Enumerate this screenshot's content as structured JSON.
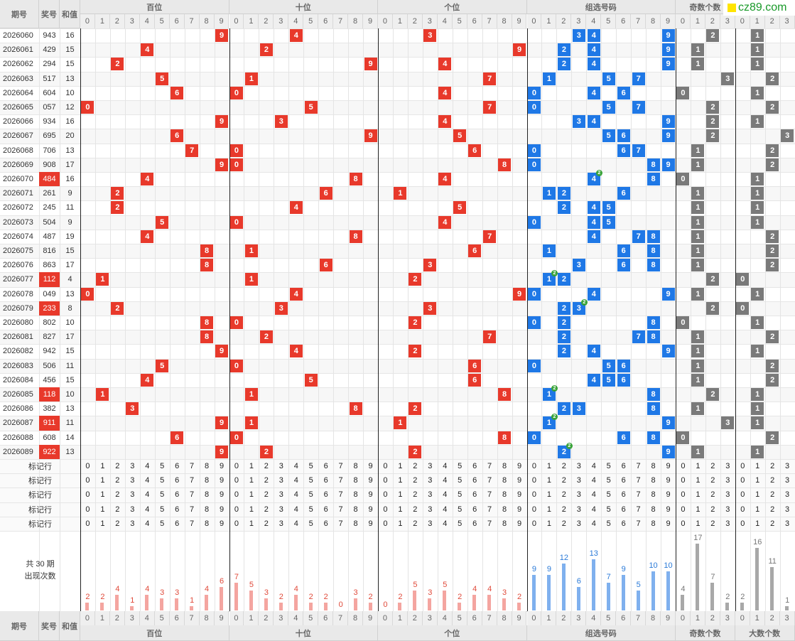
{
  "header": {
    "period_label": "期号",
    "number_label": "奖号",
    "sum_label": "和值",
    "groups": [
      "百位",
      "十位",
      "个位",
      "组选号码",
      "奇数个数",
      "大数个数"
    ],
    "logo_text": "cz89.com"
  },
  "rows": [
    {
      "period": "2026060",
      "number": "943",
      "sum": "16",
      "hl": false,
      "hundreds": 9,
      "tens": 4,
      "units": 3,
      "group": [
        3,
        4,
        9
      ],
      "dup": null,
      "odd": 2,
      "big": 1
    },
    {
      "period": "2026061",
      "number": "429",
      "sum": "15",
      "hl": false,
      "hundreds": 4,
      "tens": 2,
      "units": 9,
      "group": [
        2,
        4,
        9
      ],
      "dup": null,
      "odd": 1,
      "big": 1
    },
    {
      "period": "2026062",
      "number": "294",
      "sum": "15",
      "hl": false,
      "hundreds": 2,
      "tens": 9,
      "units": 4,
      "group": [
        2,
        4,
        9
      ],
      "dup": null,
      "odd": 1,
      "big": 1
    },
    {
      "period": "2026063",
      "number": "517",
      "sum": "13",
      "hl": false,
      "hundreds": 5,
      "tens": 1,
      "units": 7,
      "group": [
        1,
        5,
        7
      ],
      "dup": null,
      "odd": 3,
      "big": 2
    },
    {
      "period": "2026064",
      "number": "604",
      "sum": "10",
      "hl": false,
      "hundreds": 6,
      "tens": 0,
      "units": 4,
      "group": [
        0,
        4,
        6
      ],
      "dup": null,
      "odd": 0,
      "big": 1
    },
    {
      "period": "2026065",
      "number": "057",
      "sum": "12",
      "hl": false,
      "hundreds": 0,
      "tens": 5,
      "units": 7,
      "group": [
        0,
        5,
        7
      ],
      "dup": null,
      "odd": 2,
      "big": 2
    },
    {
      "period": "2026066",
      "number": "934",
      "sum": "16",
      "hl": false,
      "hundreds": 9,
      "tens": 3,
      "units": 4,
      "group": [
        3,
        4,
        9
      ],
      "dup": null,
      "odd": 2,
      "big": 1
    },
    {
      "period": "2026067",
      "number": "695",
      "sum": "20",
      "hl": false,
      "hundreds": 6,
      "tens": 9,
      "units": 5,
      "group": [
        5,
        6,
        9
      ],
      "dup": null,
      "odd": 2,
      "big": 3
    },
    {
      "period": "2026068",
      "number": "706",
      "sum": "13",
      "hl": false,
      "hundreds": 7,
      "tens": 0,
      "units": 6,
      "group": [
        0,
        6,
        7
      ],
      "dup": null,
      "odd": 1,
      "big": 2
    },
    {
      "period": "2026069",
      "number": "908",
      "sum": "17",
      "hl": false,
      "hundreds": 9,
      "tens": 0,
      "units": 8,
      "group": [
        0,
        8,
        9
      ],
      "dup": null,
      "odd": 1,
      "big": 2
    },
    {
      "period": "2026070",
      "number": "484",
      "sum": "16",
      "hl": true,
      "hundreds": 4,
      "tens": 8,
      "units": 4,
      "group": [
        4,
        8
      ],
      "dup": 4,
      "odd": 0,
      "big": 1
    },
    {
      "period": "2026071",
      "number": "261",
      "sum": "9",
      "hl": false,
      "hundreds": 2,
      "tens": 6,
      "units": 1,
      "group": [
        1,
        2,
        6
      ],
      "dup": null,
      "odd": 1,
      "big": 1
    },
    {
      "period": "2026072",
      "number": "245",
      "sum": "11",
      "hl": false,
      "hundreds": 2,
      "tens": 4,
      "units": 5,
      "group": [
        2,
        4,
        5
      ],
      "dup": null,
      "odd": 1,
      "big": 1
    },
    {
      "period": "2026073",
      "number": "504",
      "sum": "9",
      "hl": false,
      "hundreds": 5,
      "tens": 0,
      "units": 4,
      "group": [
        0,
        4,
        5
      ],
      "dup": null,
      "odd": 1,
      "big": 1
    },
    {
      "period": "2026074",
      "number": "487",
      "sum": "19",
      "hl": false,
      "hundreds": 4,
      "tens": 8,
      "units": 7,
      "group": [
        4,
        7,
        8
      ],
      "dup": null,
      "odd": 1,
      "big": 2
    },
    {
      "period": "2026075",
      "number": "816",
      "sum": "15",
      "hl": false,
      "hundreds": 8,
      "tens": 1,
      "units": 6,
      "group": [
        1,
        6,
        8
      ],
      "dup": null,
      "odd": 1,
      "big": 2
    },
    {
      "period": "2026076",
      "number": "863",
      "sum": "17",
      "hl": false,
      "hundreds": 8,
      "tens": 6,
      "units": 3,
      "group": [
        3,
        6,
        8
      ],
      "dup": null,
      "odd": 1,
      "big": 2
    },
    {
      "period": "2026077",
      "number": "112",
      "sum": "4",
      "hl": true,
      "hundreds": 1,
      "tens": 1,
      "units": 2,
      "group": [
        1,
        2
      ],
      "dup": 1,
      "odd": 2,
      "big": 0
    },
    {
      "period": "2026078",
      "number": "049",
      "sum": "13",
      "hl": false,
      "hundreds": 0,
      "tens": 4,
      "units": 9,
      "group": [
        0,
        4,
        9
      ],
      "dup": null,
      "odd": 1,
      "big": 1
    },
    {
      "period": "2026079",
      "number": "233",
      "sum": "8",
      "hl": true,
      "hundreds": 2,
      "tens": 3,
      "units": 3,
      "group": [
        2,
        3
      ],
      "dup": 3,
      "odd": 2,
      "big": 0
    },
    {
      "period": "2026080",
      "number": "802",
      "sum": "10",
      "hl": false,
      "hundreds": 8,
      "tens": 0,
      "units": 2,
      "group": [
        0,
        2,
        8
      ],
      "dup": null,
      "odd": 0,
      "big": 1
    },
    {
      "period": "2026081",
      "number": "827",
      "sum": "17",
      "hl": false,
      "hundreds": 8,
      "tens": 2,
      "units": 7,
      "group": [
        2,
        7,
        8
      ],
      "dup": null,
      "odd": 1,
      "big": 2
    },
    {
      "period": "2026082",
      "number": "942",
      "sum": "15",
      "hl": false,
      "hundreds": 9,
      "tens": 4,
      "units": 2,
      "group": [
        2,
        4,
        9
      ],
      "dup": null,
      "odd": 1,
      "big": 1
    },
    {
      "period": "2026083",
      "number": "506",
      "sum": "11",
      "hl": false,
      "hundreds": 5,
      "tens": 0,
      "units": 6,
      "group": [
        0,
        5,
        6
      ],
      "dup": null,
      "odd": 1,
      "big": 2
    },
    {
      "period": "2026084",
      "number": "456",
      "sum": "15",
      "hl": false,
      "hundreds": 4,
      "tens": 5,
      "units": 6,
      "group": [
        4,
        5,
        6
      ],
      "dup": null,
      "odd": 1,
      "big": 2
    },
    {
      "period": "2026085",
      "number": "118",
      "sum": "10",
      "hl": true,
      "hundreds": 1,
      "tens": 1,
      "units": 8,
      "group": [
        1,
        8
      ],
      "dup": 1,
      "odd": 2,
      "big": 1
    },
    {
      "period": "2026086",
      "number": "382",
      "sum": "13",
      "hl": false,
      "hundreds": 3,
      "tens": 8,
      "units": 2,
      "group": [
        2,
        3,
        8
      ],
      "dup": null,
      "odd": 1,
      "big": 1
    },
    {
      "period": "2026087",
      "number": "911",
      "sum": "11",
      "hl": true,
      "hundreds": 9,
      "tens": 1,
      "units": 1,
      "group": [
        1,
        9
      ],
      "dup": 1,
      "odd": 3,
      "big": 1
    },
    {
      "period": "2026088",
      "number": "608",
      "sum": "14",
      "hl": false,
      "hundreds": 6,
      "tens": 0,
      "units": 8,
      "group": [
        0,
        6,
        8
      ],
      "dup": null,
      "odd": 0,
      "big": 2
    },
    {
      "period": "2026089",
      "number": "922",
      "sum": "13",
      "hl": true,
      "hundreds": 9,
      "tens": 2,
      "units": 2,
      "group": [
        2,
        9
      ],
      "dup": 2,
      "odd": 1,
      "big": 1
    }
  ],
  "dup_label": "2",
  "marker_rows": {
    "label": "标记行",
    "count": 5
  },
  "digits": [
    "0",
    "1",
    "2",
    "3",
    "4",
    "5",
    "6",
    "7",
    "8",
    "9"
  ],
  "digits4": [
    "0",
    "1",
    "2",
    "3"
  ],
  "stats_label_1": "共 30 期",
  "stats_label_2": "出现次数",
  "chart_data": {
    "type": "bar",
    "title": "共 30 期 出现次数",
    "groups": [
      {
        "name": "百位",
        "categories": [
          "0",
          "1",
          "2",
          "3",
          "4",
          "5",
          "6",
          "7",
          "8",
          "9"
        ],
        "values": [
          2,
          2,
          4,
          1,
          4,
          3,
          3,
          1,
          4,
          6
        ]
      },
      {
        "name": "十位",
        "categories": [
          "0",
          "1",
          "2",
          "3",
          "4",
          "5",
          "6",
          "7",
          "8",
          "9"
        ],
        "values": [
          7,
          5,
          3,
          2,
          4,
          2,
          2,
          0,
          3,
          2
        ]
      },
      {
        "name": "个位",
        "categories": [
          "0",
          "1",
          "2",
          "3",
          "4",
          "5",
          "6",
          "7",
          "8",
          "9"
        ],
        "values": [
          0,
          2,
          5,
          3,
          5,
          2,
          4,
          4,
          3,
          2
        ]
      },
      {
        "name": "组选号码",
        "categories": [
          "0",
          "1",
          "2",
          "3",
          "4",
          "5",
          "6",
          "7",
          "8",
          "9"
        ],
        "values": [
          9,
          9,
          12,
          6,
          13,
          7,
          9,
          5,
          10,
          10
        ]
      },
      {
        "name": "奇数个数",
        "categories": [
          "0",
          "1",
          "2",
          "3"
        ],
        "values": [
          4,
          17,
          7,
          2
        ]
      },
      {
        "name": "大数个数",
        "categories": [
          "0",
          "1",
          "2",
          "3"
        ],
        "values": [
          2,
          16,
          11,
          1
        ]
      }
    ]
  },
  "colors": {
    "red": "#e8392b",
    "blue": "#1f78e6",
    "gray": "#7a7a7a",
    "bar_red": "#f4a5a0",
    "bar_blue": "#7fb0ee",
    "bar_gray": "#a8a8a8",
    "highlight": "#e8392b",
    "dup_green": "#39a339"
  }
}
